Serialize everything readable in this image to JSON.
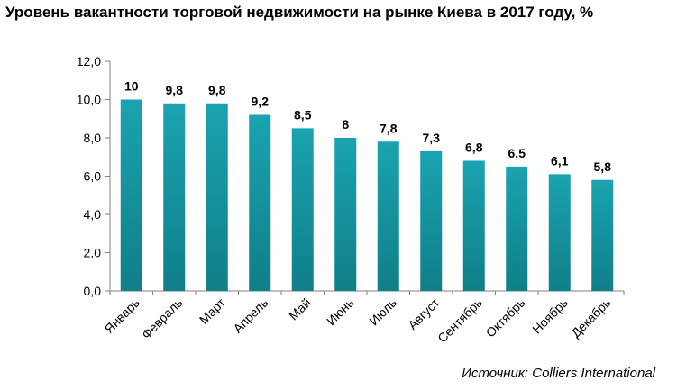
{
  "title": "Уровень вакантности торговой недвижимости на рынке Киева в 2017 году, %",
  "source": "Источник: Colliers International",
  "chart_data": {
    "type": "bar",
    "title": "Уровень вакантности торговой недвижимости на рынке Киева в 2017 году, %",
    "categories": [
      "Январь",
      "Февраль",
      "Март",
      "Апрель",
      "Май",
      "Июнь",
      "Июль",
      "Август",
      "Сентябрь",
      "Октябрь",
      "Ноябрь",
      "Декабрь"
    ],
    "values": [
      10,
      9.8,
      9.8,
      9.2,
      8.5,
      8,
      7.8,
      7.3,
      6.8,
      6.5,
      6.1,
      5.8
    ],
    "data_labels": [
      "10",
      "9,8",
      "9,8",
      "9,2",
      "8,5",
      "8",
      "7,8",
      "7,3",
      "6,8",
      "6,5",
      "6,1",
      "5,8"
    ],
    "y_ticks": [
      "0,0",
      "2,0",
      "4,0",
      "6,0",
      "8,0",
      "10,0",
      "12,0"
    ],
    "ylim": [
      0,
      12
    ],
    "xlabel": "",
    "ylabel": "",
    "grid": false,
    "bar_color": "#1aa3b0",
    "bar_color_dark": "#0f7f88"
  }
}
